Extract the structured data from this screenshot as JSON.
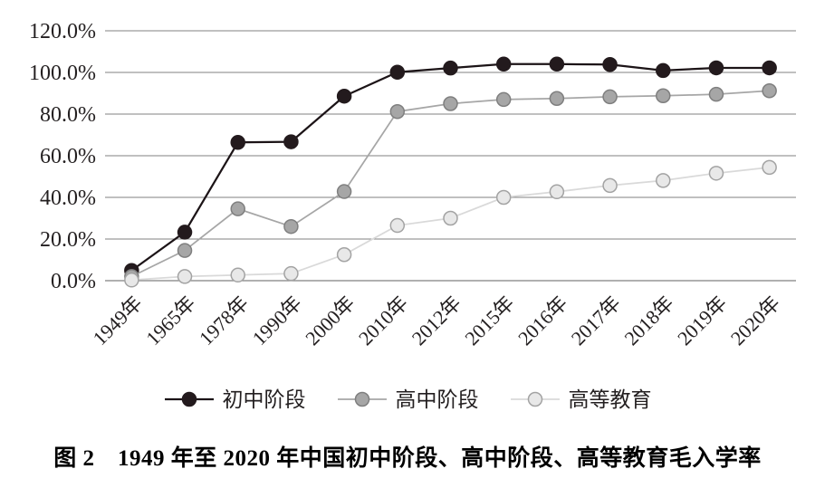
{
  "figure": {
    "caption": "图 2　1949 年至 2020 年中国初中阶段、高中阶段、高等教育毛入学率"
  },
  "chart_data": {
    "type": "line",
    "title": "",
    "xlabel": "",
    "ylabel": "",
    "ylim": [
      0,
      120
    ],
    "grid": true,
    "legend_position": "bottom",
    "grid_color": "#808080",
    "axis_label_color": "#231f20",
    "y_ticks": [
      "120.0%",
      "100.0%",
      "80.0%",
      "60.0%",
      "40.0%",
      "20.0%",
      "0.0%"
    ],
    "categories": [
      "1949年",
      "1965年",
      "1978年",
      "1990年",
      "2000年",
      "2010年",
      "2012年",
      "2015年",
      "2016年",
      "2017年",
      "2018年",
      "2019年",
      "2020年"
    ],
    "series": [
      {
        "name": "初中阶段",
        "values": [
          4.9,
          23.3,
          66.4,
          66.7,
          88.6,
          100.1,
          102.1,
          104.0,
          104.0,
          103.8,
          100.9,
          102.2,
          102.2
        ],
        "line_color": "#1c1417",
        "line_width": 2.25,
        "marker_fill": "#231a1d",
        "marker_stroke": "#231a1d"
      },
      {
        "name": "高中阶段",
        "values": [
          2.0,
          14.5,
          34.5,
          26.0,
          42.8,
          81.2,
          85.0,
          87.0,
          87.5,
          88.3,
          88.8,
          89.5,
          91.2
        ],
        "line_color": "#a6a6a6",
        "line_width": 1.75,
        "marker_fill": "#a6a6a6",
        "marker_stroke": "#7f7f7f"
      },
      {
        "name": "高等教育",
        "values": [
          0.3,
          2.0,
          2.7,
          3.4,
          12.5,
          26.5,
          30.0,
          40.0,
          42.7,
          45.7,
          48.1,
          51.6,
          54.4
        ],
        "line_color": "#d9d9d9",
        "line_width": 1.75,
        "marker_fill": "#e8e8e8",
        "marker_stroke": "#a3a3a3"
      }
    ]
  }
}
